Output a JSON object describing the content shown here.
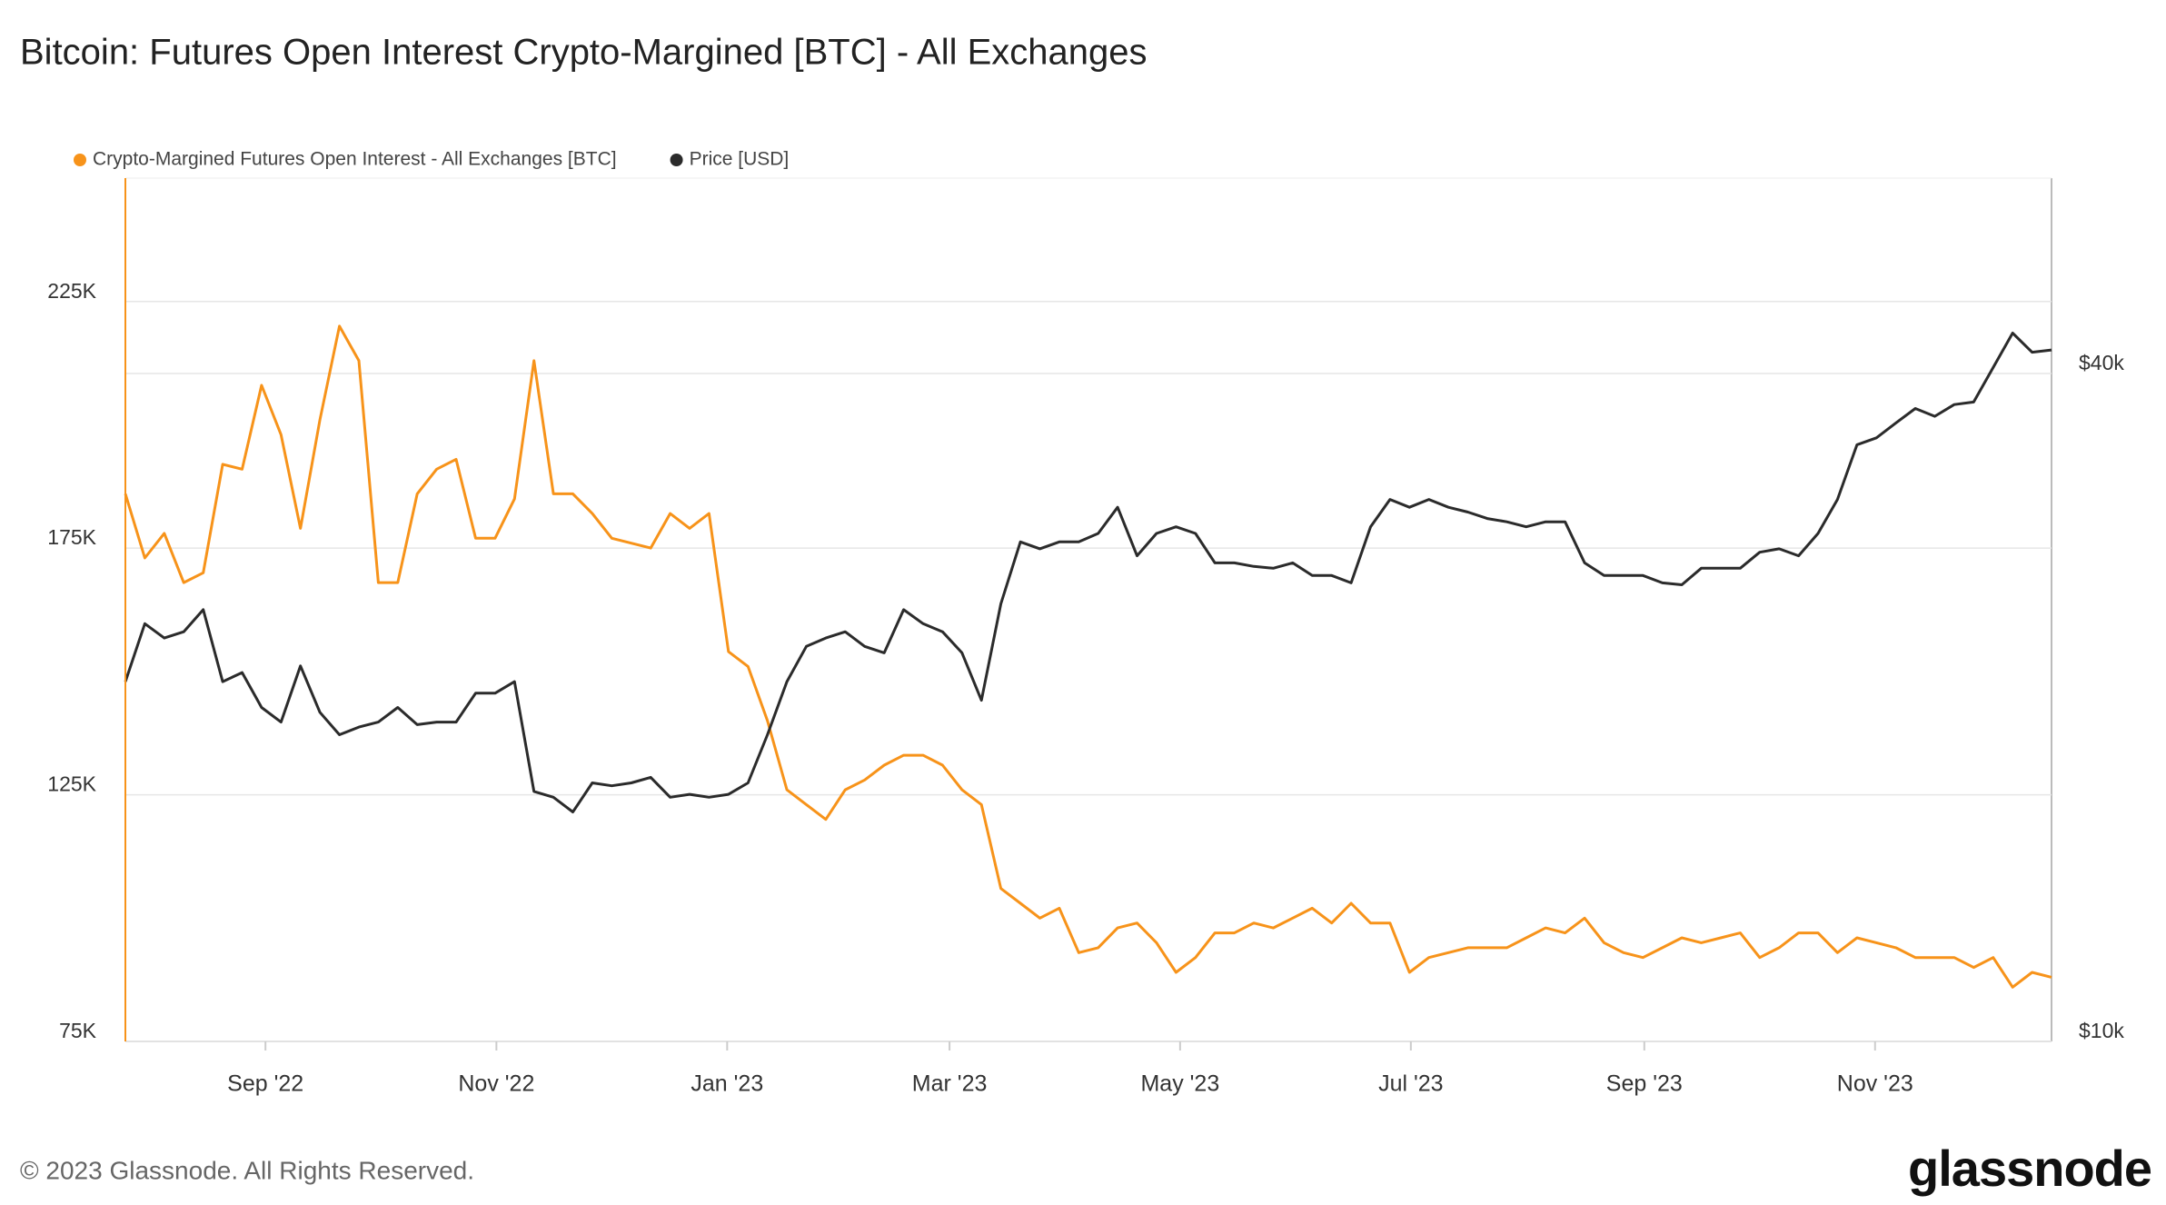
{
  "chart_data": {
    "type": "line",
    "title": "Bitcoin: Futures Open Interest Crypto-Margined [BTC] - All Exchanges",
    "series": [
      {
        "name": "Crypto-Margined Futures Open Interest - All Exchanges [BTC]",
        "color": "#f7931a",
        "axis": "y",
        "values": [
          186000,
          173000,
          178000,
          168000,
          170000,
          192000,
          191000,
          208000,
          198000,
          179000,
          201000,
          220000,
          213000,
          168000,
          168000,
          186000,
          191000,
          193000,
          177000,
          177000,
          185000,
          213000,
          186000,
          186000,
          182000,
          177000,
          176000,
          175000,
          182000,
          179000,
          182000,
          154000,
          151000,
          140000,
          126000,
          123000,
          120000,
          126000,
          128000,
          131000,
          133000,
          133000,
          131000,
          126000,
          123000,
          106000,
          103000,
          100000,
          102000,
          93000,
          94000,
          98000,
          99000,
          95000,
          89000,
          92000,
          97000,
          97000,
          99000,
          98000,
          100000,
          102000,
          99000,
          103000,
          99000,
          99000,
          89000,
          92000,
          93000,
          94000,
          94000,
          94000,
          96000,
          98000,
          97000,
          100000,
          95000,
          93000,
          92000,
          94000,
          96000,
          95000,
          96000,
          97000,
          92000,
          94000,
          97000,
          97000,
          93000,
          96000,
          95000,
          94000,
          92000,
          92000,
          92000,
          90000,
          92000,
          86000,
          89000,
          88000
        ]
      },
      {
        "name": "Price [USD]",
        "color": "#2b2b2b",
        "axis": "y2",
        "values": [
          21100,
          23800,
          23100,
          23400,
          24500,
          21100,
          21500,
          20000,
          19400,
          21800,
          19800,
          18900,
          19200,
          19400,
          20000,
          19300,
          19400,
          19400,
          20600,
          20600,
          21100,
          16800,
          16600,
          16100,
          17100,
          17000,
          17100,
          17300,
          16600,
          16700,
          16600,
          16700,
          17100,
          18900,
          21100,
          22700,
          23100,
          23400,
          22700,
          22400,
          24500,
          23800,
          23400,
          22400,
          20300,
          24800,
          28200,
          27800,
          28200,
          28200,
          28700,
          30300,
          27400,
          28700,
          29100,
          28700,
          27000,
          27000,
          26800,
          26700,
          27000,
          26300,
          26300,
          25900,
          29100,
          30800,
          30300,
          30800,
          30300,
          30000,
          29600,
          29400,
          29100,
          29400,
          29400,
          27000,
          26300,
          26300,
          26300,
          25900,
          25800,
          26700,
          26700,
          26700,
          27600,
          27800,
          27400,
          28700,
          30800,
          34500,
          35000,
          36100,
          37200,
          36600,
          37500,
          37700,
          40500,
          43500,
          41800,
          42000
        ]
      }
    ],
    "xticks": [
      {
        "value": 7.2,
        "label": "Sep '22"
      },
      {
        "value": 19.07,
        "label": "Nov '22"
      },
      {
        "value": 30.93,
        "label": "Jan '23"
      },
      {
        "value": 42.36,
        "label": "Mar '23"
      },
      {
        "value": 54.21,
        "label": "May '23"
      },
      {
        "value": 66.07,
        "label": "Jul '23"
      },
      {
        "value": 78.07,
        "label": "Sep '23"
      },
      {
        "value": 89.93,
        "label": "Nov '23"
      }
    ],
    "ylim": [
      75000,
      250000
    ],
    "yticks": [
      {
        "value": 75000,
        "label": "75K"
      },
      {
        "value": 125000,
        "label": "125K"
      },
      {
        "value": 175000,
        "label": "175K"
      },
      {
        "value": 225000,
        "label": "225K"
      }
    ],
    "y2lim": [
      10000,
      60000
    ],
    "y2scale": "log",
    "y2ticks": [
      {
        "value": 10000,
        "label": "$10k"
      },
      {
        "value": 40000,
        "label": "$40k"
      }
    ],
    "grid": true,
    "legend": "top-left"
  },
  "footer": "© 2023 Glassnode. All Rights Reserved.",
  "brand": "glassnode"
}
